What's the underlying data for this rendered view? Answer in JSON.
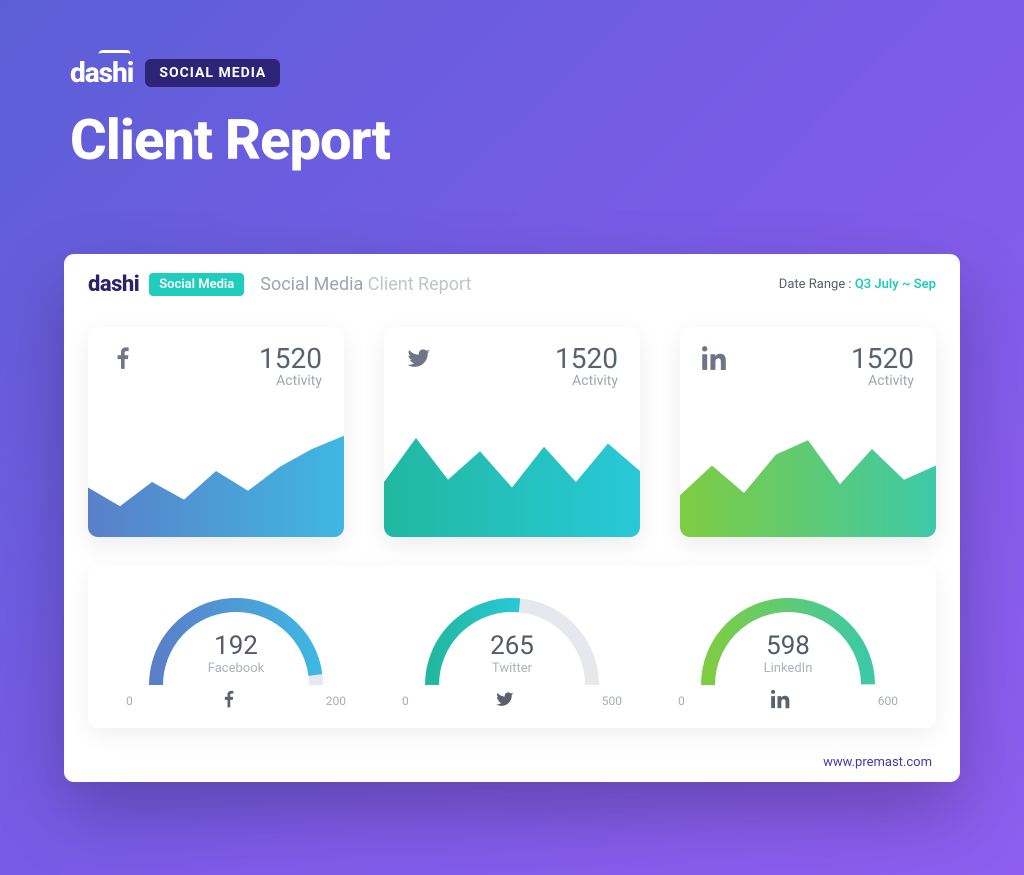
{
  "outer": {
    "brand": "dashi",
    "badge": "SOCIAL MEDIA",
    "title": "Client Report",
    "bg_gradient": [
      "#5b5fd6",
      "#7b5be8",
      "#8f5ef0"
    ]
  },
  "panel": {
    "brand": "dashi",
    "badge": "Social Media",
    "title_prefix": "Social Media ",
    "title_suffix": "Client Report",
    "date_label": "Date Range : ",
    "date_value": "Q3 July ~ Sep",
    "footer": "www.premast.com"
  },
  "cards": [
    {
      "platform": "facebook",
      "value": "1520",
      "label": "Activity",
      "type": "area",
      "gradient": [
        "#5a7fc9",
        "#3fb7e2"
      ],
      "points": [
        0.55,
        0.72,
        0.5,
        0.66,
        0.4,
        0.58,
        0.36,
        0.2,
        0.08
      ]
    },
    {
      "platform": "twitter",
      "value": "1520",
      "label": "Activity",
      "type": "area",
      "gradient": [
        "#21b8a0",
        "#28c9d8"
      ],
      "points": [
        0.5,
        0.1,
        0.48,
        0.22,
        0.55,
        0.18,
        0.5,
        0.15,
        0.4
      ]
    },
    {
      "platform": "linkedin",
      "value": "1520",
      "label": "Activity",
      "type": "area",
      "gradient": [
        "#7fcc42",
        "#3dc9a7"
      ],
      "points": [
        0.62,
        0.35,
        0.6,
        0.25,
        0.12,
        0.52,
        0.2,
        0.48,
        0.35
      ]
    }
  ],
  "gauges": [
    {
      "value": "192",
      "label": "Facebook",
      "platform": "facebook",
      "min": "0",
      "max": "200",
      "fill": 0.96,
      "colors": [
        "#5a7fc9",
        "#3fb7e2"
      ],
      "track": "#e6e8ed"
    },
    {
      "value": "265",
      "label": "Twitter",
      "platform": "twitter",
      "min": "0",
      "max": "500",
      "fill": 0.53,
      "colors": [
        "#21b8a0",
        "#28c9d8"
      ],
      "track": "#e6e8ed"
    },
    {
      "value": "598",
      "label": "LinkedIn",
      "platform": "linkedin",
      "min": "0",
      "max": "600",
      "fill": 0.997,
      "colors": [
        "#7fcc42",
        "#3dc9a7"
      ],
      "track": "#e6e8ed"
    }
  ]
}
